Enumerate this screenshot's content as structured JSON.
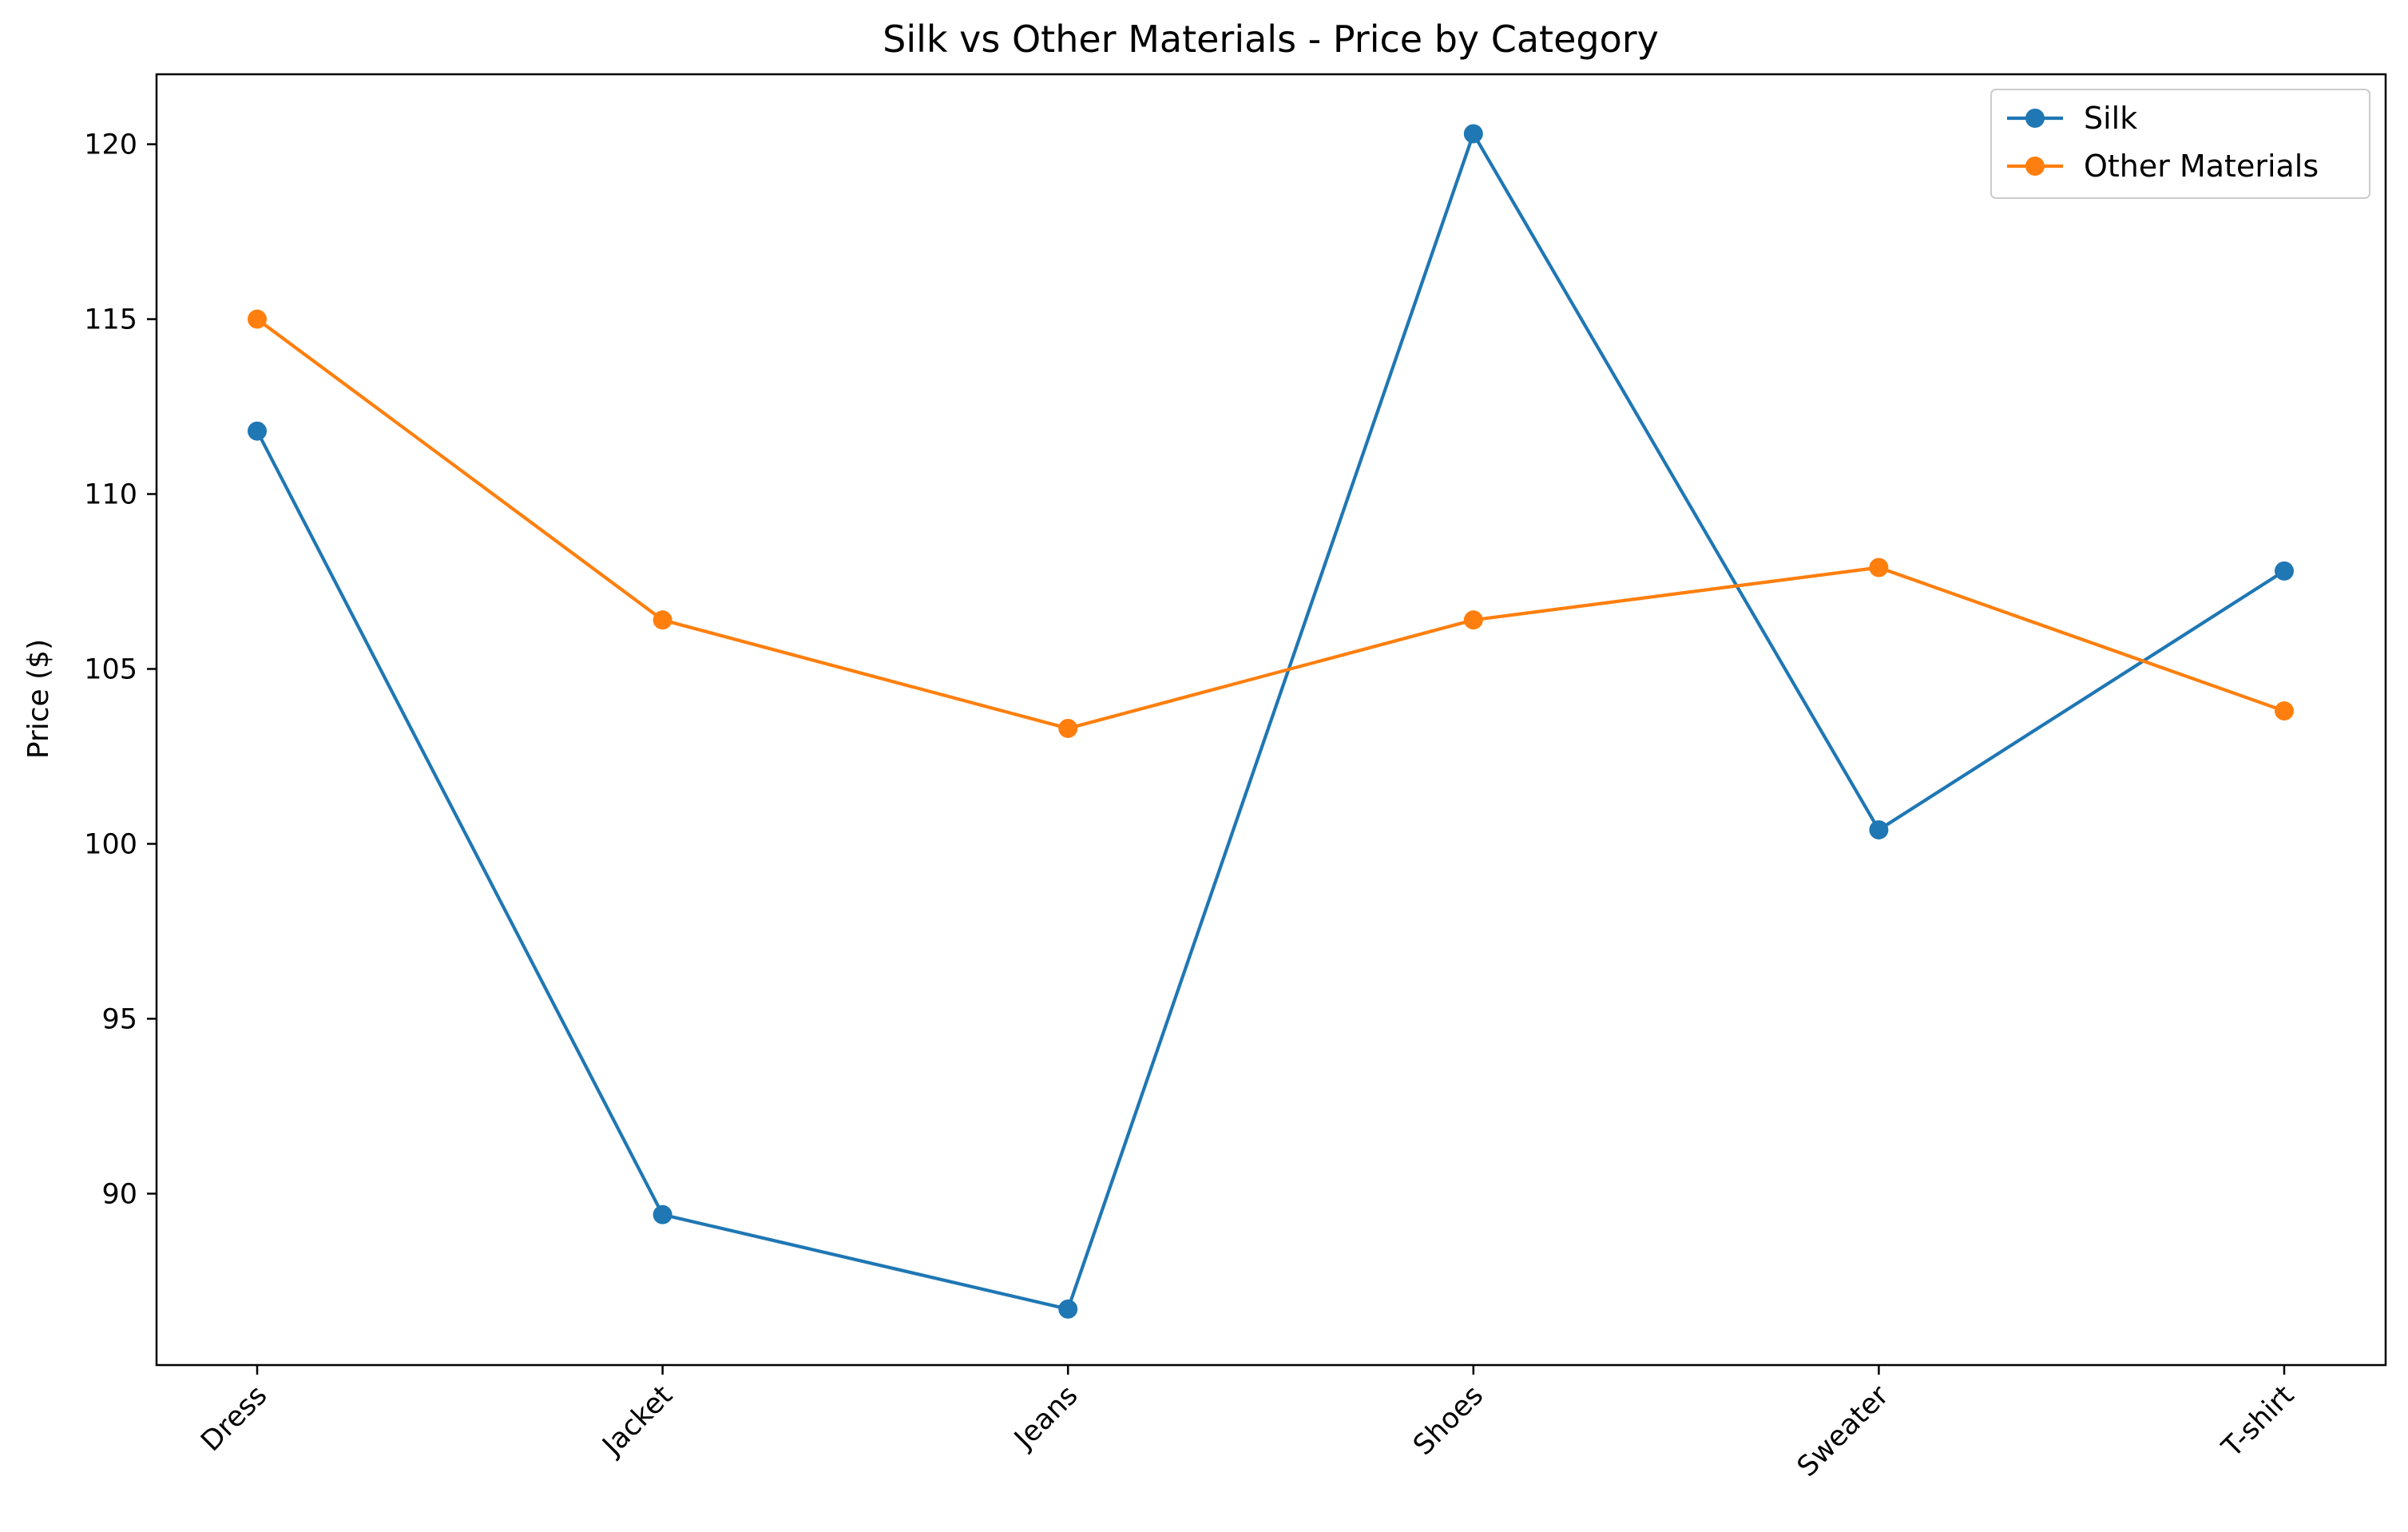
{
  "chart_data": {
    "type": "line",
    "title": "Silk vs Other Materials - Price by Category",
    "xlabel": "",
    "ylabel": "Price ($)",
    "categories": [
      "Dress",
      "Jacket",
      "Jeans",
      "Shoes",
      "Sweater",
      "T-shirt"
    ],
    "series": [
      {
        "name": "Silk",
        "color": "#1f77b4",
        "values": [
          111.8,
          89.4,
          86.7,
          120.3,
          100.4,
          107.8
        ]
      },
      {
        "name": "Other Materials",
        "color": "#ff7f0e",
        "values": [
          115.0,
          106.4,
          103.3,
          106.4,
          107.9,
          103.8
        ]
      }
    ],
    "ylim": [
      85.1,
      122.0
    ],
    "yticks": [
      90,
      95,
      100,
      105,
      110,
      115,
      120
    ],
    "grid": false,
    "legend": "top-right",
    "marker": "circle"
  }
}
